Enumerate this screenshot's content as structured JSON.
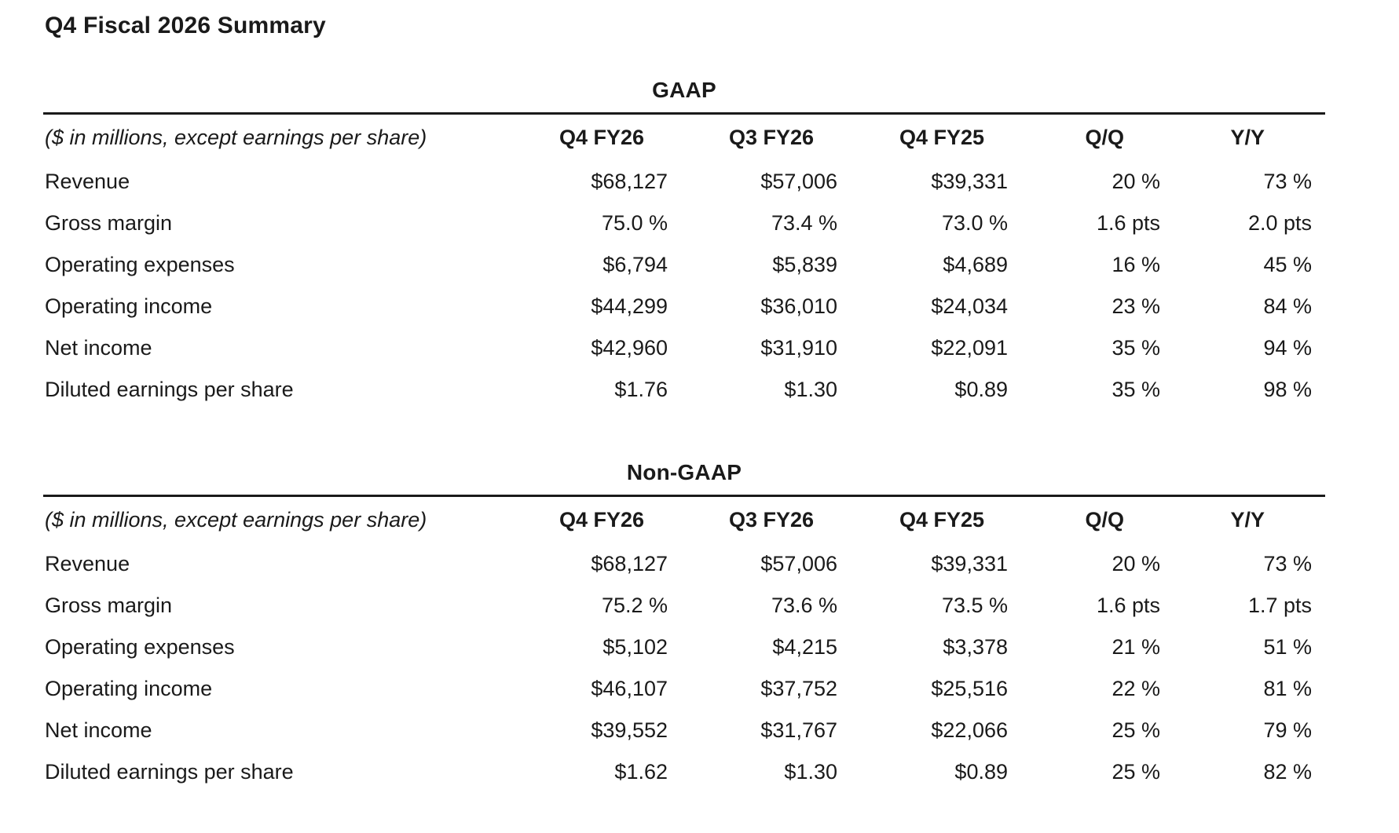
{
  "page_title": "Q4 Fiscal 2026 Summary",
  "colors": {
    "text": "#1a1a1a",
    "rule": "#1a1a1a",
    "background": "#ffffff"
  },
  "tables": [
    {
      "heading": "GAAP",
      "unit_note": "($ in millions, except earnings per share)",
      "columns": [
        "Q4 FY26",
        "Q3 FY26",
        "Q4 FY25",
        "Q/Q",
        "Y/Y"
      ],
      "rows": [
        {
          "label": "Revenue",
          "values": [
            "$68,127",
            "$57,006",
            "$39,331",
            "20 %",
            "73 %"
          ]
        },
        {
          "label": "Gross margin",
          "values": [
            "75.0 %",
            "73.4 %",
            "73.0 %",
            "1.6 pts",
            "2.0 pts"
          ]
        },
        {
          "label": "Operating expenses",
          "values": [
            "$6,794",
            "$5,839",
            "$4,689",
            "16 %",
            "45 %"
          ]
        },
        {
          "label": "Operating income",
          "values": [
            "$44,299",
            "$36,010",
            "$24,034",
            "23 %",
            "84 %"
          ]
        },
        {
          "label": "Net income",
          "values": [
            "$42,960",
            "$31,910",
            "$22,091",
            "35 %",
            "94 %"
          ]
        },
        {
          "label": "Diluted earnings per share",
          "values": [
            "$1.76",
            "$1.30",
            "$0.89",
            "35 %",
            "98 %"
          ]
        }
      ]
    },
    {
      "heading": "Non-GAAP",
      "unit_note": "($ in millions, except earnings per share)",
      "columns": [
        "Q4 FY26",
        "Q3 FY26",
        "Q4 FY25",
        "Q/Q",
        "Y/Y"
      ],
      "rows": [
        {
          "label": "Revenue",
          "values": [
            "$68,127",
            "$57,006",
            "$39,331",
            "20 %",
            "73 %"
          ]
        },
        {
          "label": "Gross margin",
          "values": [
            "75.2 %",
            "73.6 %",
            "73.5 %",
            "1.6 pts",
            "1.7 pts"
          ]
        },
        {
          "label": "Operating expenses",
          "values": [
            "$5,102",
            "$4,215",
            "$3,378",
            "21 %",
            "51 %"
          ]
        },
        {
          "label": "Operating income",
          "values": [
            "$46,107",
            "$37,752",
            "$25,516",
            "22 %",
            "81 %"
          ]
        },
        {
          "label": "Net income",
          "values": [
            "$39,552",
            "$31,767",
            "$22,066",
            "25 %",
            "79 %"
          ]
        },
        {
          "label": "Diluted earnings per share",
          "values": [
            "$1.62",
            "$1.30",
            "$0.89",
            "25 %",
            "82 %"
          ]
        }
      ]
    }
  ]
}
